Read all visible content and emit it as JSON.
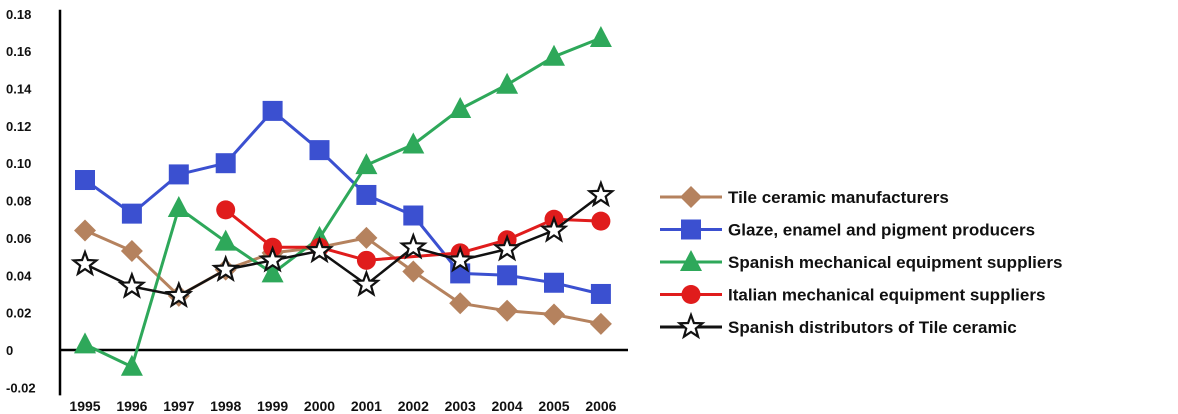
{
  "chart_data": {
    "type": "line",
    "title": "",
    "xlabel": "",
    "ylabel": "",
    "ylim": [
      -0.02,
      0.18
    ],
    "y_ticks": [
      "-0.02",
      "0",
      "0.02",
      "0.04",
      "0.06",
      "0.08",
      "0.10",
      "0.12",
      "0.14",
      "0.16",
      "0.18"
    ],
    "categories": [
      "1995",
      "1996",
      "1997",
      "1998",
      "1999",
      "2000",
      "2001",
      "2002",
      "2003",
      "2004",
      "2005",
      "2006"
    ],
    "grid": false,
    "legend_position": "right",
    "series": [
      {
        "name": "Tile ceramic manufacturers",
        "marker": "diamond",
        "color": "#b5825e",
        "values": [
          0.064,
          0.053,
          0.029,
          0.043,
          0.052,
          0.055,
          0.06,
          0.042,
          0.025,
          0.021,
          0.019,
          0.014
        ]
      },
      {
        "name": "Glaze, enamel and pigment producers",
        "marker": "square",
        "color": "#3b50d0",
        "values": [
          0.091,
          0.073,
          0.094,
          0.1,
          0.128,
          0.107,
          0.083,
          0.072,
          0.041,
          0.04,
          0.036,
          0.03
        ]
      },
      {
        "name": "Spanish mechanical equipment suppliers",
        "marker": "triangle",
        "color": "#2ea85a",
        "values": [
          0.003,
          -0.009,
          0.076,
          0.058,
          0.041,
          0.06,
          0.099,
          0.11,
          0.129,
          0.142,
          0.157,
          0.167
        ]
      },
      {
        "name": "Italian mechanical equipment suppliers",
        "marker": "circle",
        "color": "#e01c1c",
        "values": [
          null,
          null,
          null,
          0.075,
          0.055,
          0.055,
          0.048,
          null,
          0.052,
          0.059,
          0.07,
          0.069
        ]
      },
      {
        "name": "Spanish distributors of Tile ceramic",
        "marker": "star",
        "color": "#111111",
        "values": [
          0.046,
          0.034,
          0.029,
          0.043,
          0.048,
          0.053,
          0.035,
          0.055,
          0.048,
          0.054,
          0.064,
          0.083
        ]
      }
    ]
  }
}
